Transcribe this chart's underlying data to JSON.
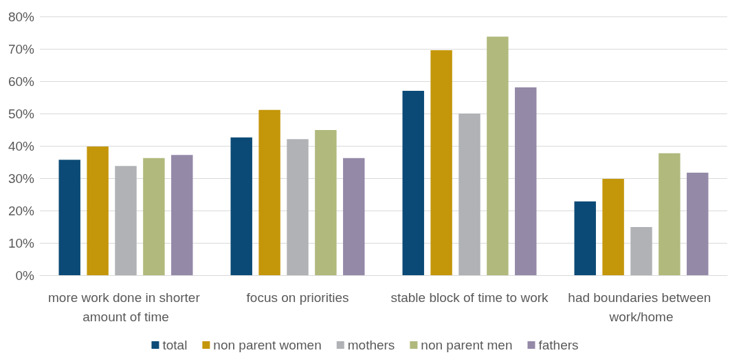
{
  "chart_data": {
    "type": "bar",
    "categories": [
      "more work done in shorter amount of time",
      "focus on priorities",
      "stable block of time to work",
      "had boundaries between work/home"
    ],
    "series": [
      {
        "name": "total",
        "color": "#0b4a76",
        "values": [
          35.7,
          42.6,
          57.0,
          22.8
        ]
      },
      {
        "name": "non parent women",
        "color": "#c4960a",
        "values": [
          39.8,
          51.1,
          69.6,
          29.8
        ]
      },
      {
        "name": "mothers",
        "color": "#b0b2b5",
        "values": [
          33.8,
          42.1,
          50.0,
          14.9
        ]
      },
      {
        "name": "non parent men",
        "color": "#b1b97c",
        "values": [
          36.2,
          44.9,
          73.8,
          37.7
        ]
      },
      {
        "name": "fathers",
        "color": "#9589a8",
        "values": [
          37.2,
          36.2,
          58.1,
          31.7
        ]
      }
    ],
    "ylim": [
      0,
      80
    ],
    "yticks": [
      {
        "value": 0,
        "label": "0%"
      },
      {
        "value": 10,
        "label": "10%"
      },
      {
        "value": 20,
        "label": "20%"
      },
      {
        "value": 30,
        "label": "30%"
      },
      {
        "value": 40,
        "label": "40%"
      },
      {
        "value": 50,
        "label": "50%"
      },
      {
        "value": 60,
        "label": "60%"
      },
      {
        "value": 70,
        "label": "70%"
      },
      {
        "value": 80,
        "label": "80%"
      }
    ],
    "grid": "y",
    "legend": "bottom"
  }
}
